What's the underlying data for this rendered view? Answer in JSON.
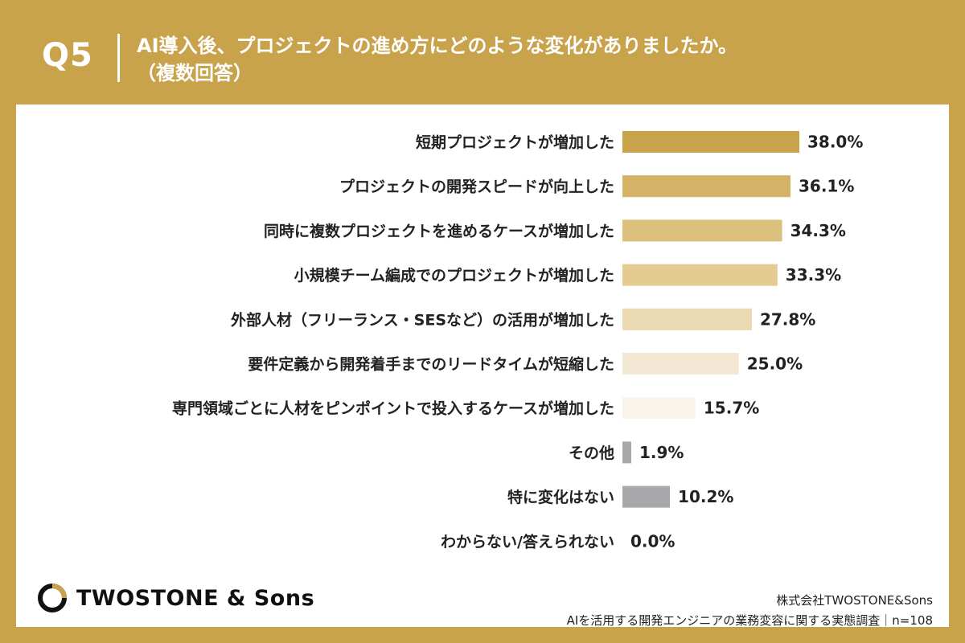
{
  "header": {
    "question_number": "Q5",
    "title_line1": "AI導入後、プロジェクトの進め方にどのような変化がありましたか。",
    "title_line2": "（複数回答）"
  },
  "chart_data": {
    "type": "bar",
    "orientation": "horizontal",
    "categories": [
      "短期プロジェクトが増加した",
      "プロジェクトの開発スピードが向上した",
      "同時に複数プロジェクトを進めるケースが増加した",
      "小規模チーム編成でのプロジェクトが増加した",
      "外部人材（フリーランス・SESなど）の活用が増加した",
      "要件定義から開発着手までのリードタイムが短縮した",
      "専門領域ごとに人材をピンポイントで投入するケースが増加した",
      "その他",
      "特に変化はない",
      "わからない/答えられない"
    ],
    "values": [
      38.0,
      36.1,
      34.3,
      33.3,
      27.8,
      25.0,
      15.7,
      1.9,
      10.2,
      0.0
    ],
    "value_labels": [
      "38.0%",
      "36.1%",
      "34.3%",
      "33.3%",
      "27.8%",
      "25.0%",
      "15.7%",
      "1.9%",
      "10.2%",
      "0.0%"
    ],
    "colors": [
      "#c9a24c",
      "#d4b266",
      "#dcc17e",
      "#e3cb91",
      "#ebd9b2",
      "#f2e8d3",
      "#faf4ec",
      "#a8a8ab",
      "#a8a8ab",
      "#a8a8ab"
    ],
    "xlim": [
      0,
      38.0
    ],
    "grid": false
  },
  "footer": {
    "brand": "TWOSTONE & Sons",
    "company": "株式会社TWOSTONE&Sons",
    "survey": "AIを活用する開発エンジニアの業務変容に関する実態調査｜n=108"
  }
}
